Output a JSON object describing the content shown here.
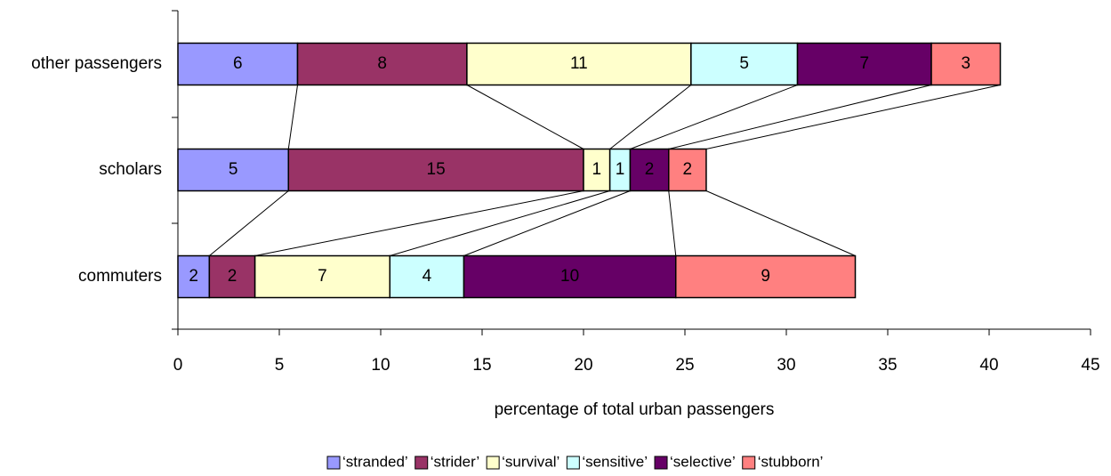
{
  "chart_data": {
    "type": "stacked-bar-horizontal",
    "x_label": "percentage of total urban passengers",
    "categories": [
      "other passengers",
      "scholars",
      "commuters"
    ],
    "series": [
      {
        "name": "‘stranded’",
        "color": "#9999ff",
        "values": [
          5.9,
          5.45,
          1.55
        ],
        "value_labels": [
          "6",
          "5",
          "2"
        ]
      },
      {
        "name": "‘strider’",
        "color": "#993366",
        "values": [
          8.35,
          14.55,
          2.25
        ],
        "value_labels": [
          "8",
          "15",
          "2"
        ]
      },
      {
        "name": "‘survival’",
        "color": "#ffffcc",
        "values": [
          11.05,
          1.3,
          6.65
        ],
        "value_labels": [
          "11",
          "1",
          "7"
        ]
      },
      {
        "name": "‘sensitive’",
        "color": "#ccffff",
        "values": [
          5.25,
          1.0,
          3.65
        ],
        "value_labels": [
          "5",
          "1",
          "4"
        ]
      },
      {
        "name": "‘selective’",
        "color": "#660066",
        "values": [
          6.6,
          1.9,
          10.45
        ],
        "value_labels": [
          "7",
          "2",
          "10"
        ]
      },
      {
        "name": "‘stubborn’",
        "color": "#ff8080",
        "values": [
          3.4,
          1.85,
          8.85
        ],
        "value_labels": [
          "3",
          "2",
          "9"
        ]
      }
    ],
    "xlim": [
      0,
      45
    ],
    "xticks": [
      0,
      5,
      10,
      15,
      20,
      25,
      30,
      35,
      40,
      45
    ],
    "legend": "bottom"
  }
}
